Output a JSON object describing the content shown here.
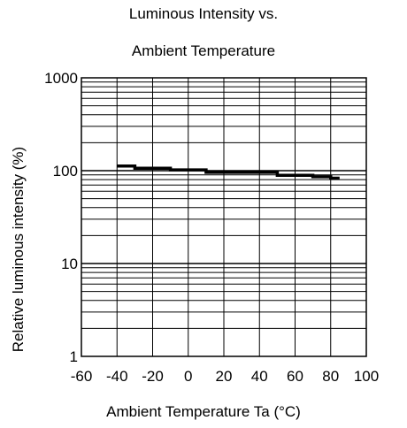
{
  "chart_data": {
    "type": "line",
    "title": "Luminous Intensity vs.",
    "subtitle": "Ambient Temperature",
    "xlabel": "Ambient Temperature Ta (°C)",
    "ylabel": "Relative luminous intensity  (%)",
    "xlim": [
      -60,
      100
    ],
    "ylim": [
      1,
      1000
    ],
    "yscale": "log",
    "xticks": [
      -60,
      -40,
      -20,
      0,
      20,
      40,
      60,
      80,
      100
    ],
    "xtick_labels": [
      "-60",
      "-40",
      "-20",
      "0",
      "20",
      "40",
      "60",
      "80",
      "100"
    ],
    "yticks": [
      1,
      10,
      100,
      1000
    ],
    "ytick_labels": [
      "1",
      "10",
      "100",
      "1000"
    ],
    "grid": true,
    "series": [
      {
        "x": [
          -40,
          -30,
          -30,
          -10,
          -10,
          10,
          10,
          50,
          50,
          70,
          70,
          80,
          80,
          85
        ],
        "y": [
          112,
          112,
          106,
          106,
          102,
          102,
          96,
          96,
          89,
          89,
          86,
          86,
          83,
          83
        ]
      }
    ]
  }
}
